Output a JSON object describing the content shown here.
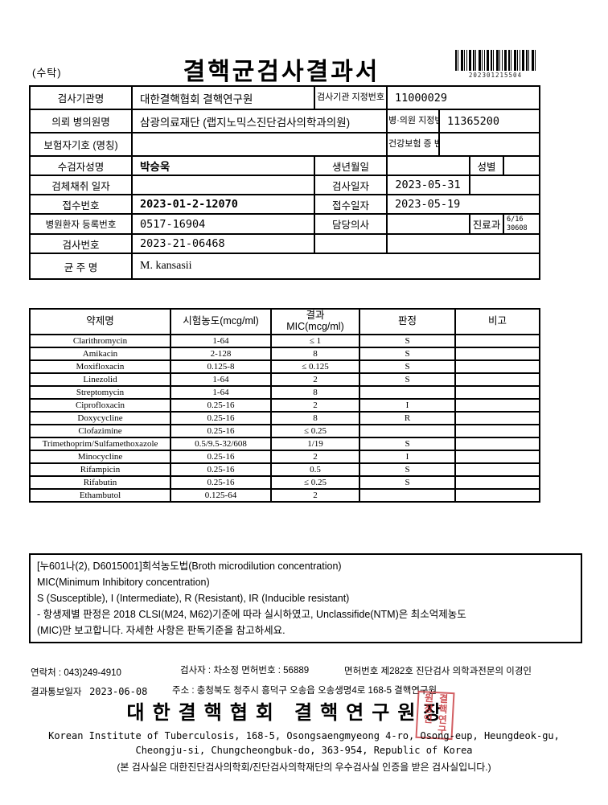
{
  "page": {
    "consignment_label": "(수탁)",
    "title": "결핵균검사결과서",
    "barcode_number": "202301215504"
  },
  "info": {
    "org_label": "검사기관명",
    "org_value": "대한결핵협회 결핵연구원",
    "org_no_label": "검사기관 지정번호",
    "org_no_value": "11000029",
    "clinic_label": "의뢰 병의원명",
    "clinic_value": "삼광의료재단 (랩지노믹스진단검사의학과의원)",
    "clinic_no_label": "병·의원 지정번호",
    "clinic_no_value": "11365200",
    "insurer_label": "보험자기호 (명칭)",
    "insurer_value": "",
    "hi_no_label": "건강보험 증 번 호",
    "hi_no_value": "",
    "patient_label": "수검자성명",
    "patient_value": "박승욱",
    "birth_label": "생년월일",
    "birth_value": "",
    "sex_label": "성별",
    "sex_value": "",
    "collect_label": "검체채취 일자",
    "collect_value": "",
    "testdate_label": "검사일자",
    "testdate_value": "2023-05-31",
    "receipt_label": "접수번호",
    "receipt_value": "2023-01-2-12070",
    "receiptdate_label": "접수일자",
    "receiptdate_value": "2023-05-19",
    "hospno_label": "병원환자 등록번호",
    "hospno_value": "0517-16904",
    "doctor_label": "담당의사",
    "doctor_value": "",
    "dept_label": "진료과",
    "dept_value_1": "6/16",
    "dept_value_2": "30608",
    "labno_label": "검사번호",
    "labno_value": "2023-21-06468",
    "strain_label": "균 주 명",
    "strain_value": "M. kansasii"
  },
  "drug_table": {
    "header": {
      "name": "약제명",
      "range": "시험농도(mcg/ml)",
      "mic_line1": "결과",
      "mic_line2": "MIC(mcg/ml)",
      "result": "판정",
      "note": "비고"
    },
    "rows": [
      {
        "name": "Clarithromycin",
        "range": "1-64",
        "mic": "≤ 1",
        "result": "S",
        "note": ""
      },
      {
        "name": "Amikacin",
        "range": "2-128",
        "mic": "8",
        "result": "S",
        "note": ""
      },
      {
        "name": "Moxifloxacin",
        "range": "0.125-8",
        "mic": "≤ 0.125",
        "result": "S",
        "note": ""
      },
      {
        "name": "Linezolid",
        "range": "1-64",
        "mic": "2",
        "result": "S",
        "note": ""
      },
      {
        "name": "Streptomycin",
        "range": "1-64",
        "mic": "8",
        "result": "",
        "note": ""
      },
      {
        "name": "Ciprofloxacin",
        "range": "0.25-16",
        "mic": "2",
        "result": "I",
        "note": ""
      },
      {
        "name": "Doxycycline",
        "range": "0.25-16",
        "mic": "8",
        "result": "R",
        "note": ""
      },
      {
        "name": "Clofazimine",
        "range": "0.25-16",
        "mic": "≤ 0.25",
        "result": "",
        "note": ""
      },
      {
        "name": "Trimethoprim/Sulfamethoxazole",
        "range": "0.5/9.5-32/608",
        "mic": "1/19",
        "result": "S",
        "note": ""
      },
      {
        "name": "Minocycline",
        "range": "0.25-16",
        "mic": "2",
        "result": "I",
        "note": ""
      },
      {
        "name": "Rifampicin",
        "range": "0.25-16",
        "mic": "0.5",
        "result": "S",
        "note": ""
      },
      {
        "name": "Rifabutin",
        "range": "0.25-16",
        "mic": "≤ 0.25",
        "result": "S",
        "note": ""
      },
      {
        "name": "Ethambutol",
        "range": "0.125-64",
        "mic": "2",
        "result": "",
        "note": ""
      }
    ]
  },
  "notes": {
    "lines": [
      "[누601나(2), D6015001]희석농도법(Broth microdilution concentration)",
      "MIC(Minimum Inhibitory concentration)",
      "S (Susceptible), I (Intermediate), R (Resistant), IR (Inducible resistant)",
      "- 항생제별 판정은 2018 CLSI(M24, M62)기준에 따라 실시하였고, Unclassifide(NTM)은 최소억제농도",
      "(MIC)만 보고합니다. 자세한 사항은 판독기준을 참고하세요."
    ]
  },
  "footer": {
    "contact": "연락처 : 043)249-4910",
    "examiner": "검사자 : 차소정  면허번호 : 56889",
    "license": "면허번호 제282호 진단검사 의학과전문의 이경인",
    "report_date_label": "결과통보일자",
    "report_date": "2023-06-08",
    "address": "주소 : 충청북도 청주시 흥덕구 오송읍 오송생명4로 168-5 결핵연구원",
    "org_title": "대한결핵협회  결핵연구원장",
    "seal_text": "결핵연구원장인",
    "english_address_1": "Korean Institute of Tuberculosis, 168-5, Osongsaengmyeong 4-ro, Osong-eup, Heungdeok-gu,",
    "english_address_2": "Cheongju-si, Chungcheongbuk-do, 363-954, Republic of Korea",
    "accreditation": "(본 검사실은 대한진단검사의학회/진단검사의학재단의 우수검사실 인증을 받은 검사실입니다.)"
  }
}
